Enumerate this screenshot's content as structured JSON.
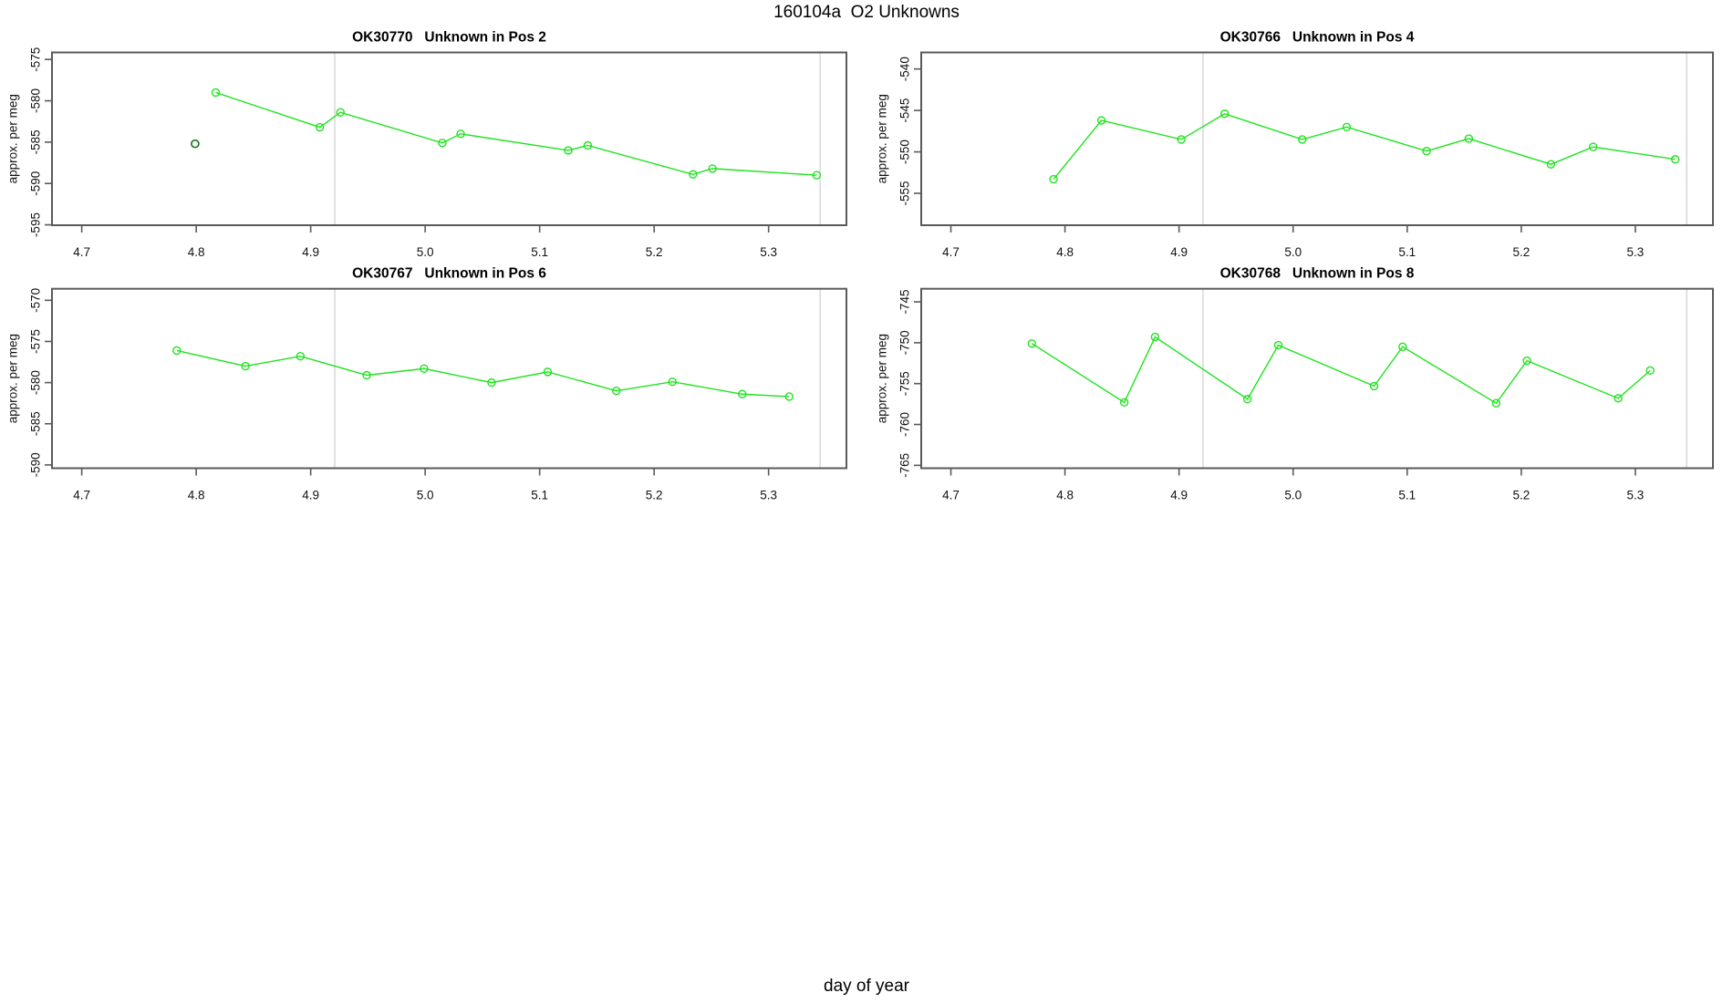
{
  "window": {
    "background": "#ffffff"
  },
  "colors": {
    "series_green": "#1FE31F",
    "outlier_dark_green": "#1E7A1E",
    "box_border": "#5A5A5A",
    "guide_line_gray": "#D8D8D8",
    "text": "#111111"
  },
  "chart_data": {
    "type": "line",
    "title": "160104a  O2 Unknowns",
    "xlabel": "day of year",
    "ylabel": "approx. per meg",
    "legend": "none",
    "grid": "off",
    "marker_style": "open-circle",
    "xlim": [
      4.674,
      5.368
    ],
    "x_tick_values": [
      4.7,
      4.8,
      4.9,
      5.0,
      5.1,
      5.2,
      5.3
    ],
    "x_tick_labels": [
      "4.7",
      "4.8",
      "4.9",
      "5.0",
      "5.1",
      "5.2",
      "5.3"
    ],
    "vlines": [
      4.921,
      5.345
    ],
    "panels": [
      {
        "title": "OK30770   Unknown in Pos 2",
        "ylim": [
          -574.15,
          -595.05
        ],
        "y_tick_values": [
          -575,
          -580,
          -585,
          -590,
          -595
        ],
        "y_tick_labels": [
          "-575",
          "-580",
          "-585",
          "-590",
          "-595"
        ],
        "series": {
          "x": [
            4.817,
            4.908,
            4.926,
            5.015,
            5.031,
            5.125,
            5.142,
            5.234,
            5.251,
            5.342
          ],
          "y": [
            -579.0,
            -583.2,
            -581.4,
            -585.1,
            -584.0,
            -586.0,
            -585.4,
            -588.9,
            -588.2,
            -589.0
          ]
        },
        "outlier": {
          "x": 4.799,
          "y": -585.2
        }
      },
      {
        "title": "OK30766   Unknown in Pos 4",
        "ylim": [
          -538.0,
          -558.85
        ],
        "y_tick_values": [
          -540,
          -545,
          -550,
          -555
        ],
        "y_tick_labels": [
          "-540",
          "-545",
          "-550",
          "-555"
        ],
        "series": {
          "x": [
            4.79,
            4.832,
            4.902,
            4.94,
            5.008,
            5.047,
            5.117,
            5.154,
            5.226,
            5.263,
            5.335
          ],
          "y": [
            -553.3,
            -546.2,
            -548.5,
            -545.4,
            -548.5,
            -547.0,
            -549.9,
            -548.4,
            -551.5,
            -549.4,
            -550.9
          ]
        },
        "outlier": null
      },
      {
        "title": "OK30767   Unknown in Pos 6",
        "ylim": [
          -568.6,
          -590.4
        ],
        "y_tick_values": [
          -570,
          -575,
          -580,
          -585,
          -590
        ],
        "y_tick_labels": [
          "-570",
          "-575",
          "-580",
          "-585",
          "-590"
        ],
        "series": {
          "x": [
            4.783,
            4.843,
            4.891,
            4.949,
            4.999,
            5.058,
            5.107,
            5.167,
            5.216,
            5.277,
            5.318
          ],
          "y": [
            -576.1,
            -578.0,
            -576.8,
            -579.1,
            -578.3,
            -580.0,
            -578.7,
            -581.0,
            -579.9,
            -581.4,
            -581.7
          ]
        },
        "outlier": null
      },
      {
        "title": "OK30768   Unknown in Pos 8",
        "ylim": [
          -743.4,
          -765.35
        ],
        "y_tick_values": [
          -745,
          -750,
          -755,
          -760,
          -765
        ],
        "y_tick_labels": [
          "-745",
          "-750",
          "-755",
          "-760",
          "-765"
        ],
        "series": {
          "x": [
            4.771,
            4.852,
            4.879,
            4.96,
            4.987,
            5.071,
            5.096,
            5.178,
            5.205,
            5.285,
            5.313
          ],
          "y": [
            -750.1,
            -757.3,
            -749.3,
            -756.9,
            -750.3,
            -755.3,
            -750.5,
            -757.4,
            -752.2,
            -756.8,
            -753.4
          ]
        },
        "outlier": null
      }
    ]
  }
}
